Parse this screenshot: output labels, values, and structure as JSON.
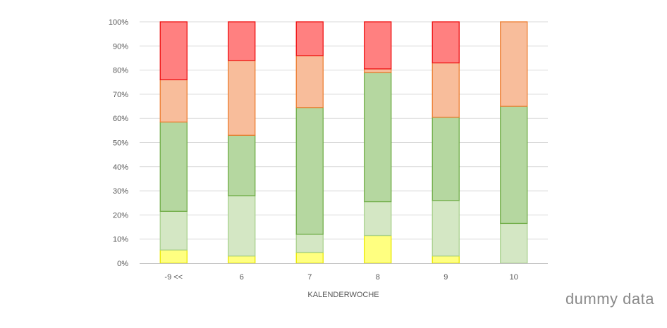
{
  "chart_data": {
    "type": "bar",
    "stacked": true,
    "percent_stacked": true,
    "categories": [
      "-9 <<",
      "6",
      "7",
      "8",
      "9",
      "10"
    ],
    "xlabel": "KALENDERWOCHE",
    "ylabel": "",
    "ylim": [
      0,
      100
    ],
    "y_ticks": [
      "0%",
      "10%",
      "20%",
      "30%",
      "40%",
      "50%",
      "60%",
      "70%",
      "80%",
      "90%",
      "100%"
    ],
    "grid": true,
    "legend": "none",
    "series": [
      {
        "values": [
          5.5,
          3,
          4.5,
          11.5,
          3,
          0
        ],
        "fill": "#ffff80",
        "stroke": "#e8e800"
      },
      {
        "values": [
          16,
          25,
          7.5,
          14,
          23,
          16.5
        ],
        "fill": "#d4e7c4",
        "stroke": "#a9d18e"
      },
      {
        "values": [
          37,
          25,
          52.5,
          53.5,
          34.5,
          48.5
        ],
        "fill": "#b5d7a0",
        "stroke": "#70ad47"
      },
      {
        "values": [
          17.5,
          31,
          21.5,
          1.5,
          22.5,
          35
        ],
        "fill": "#f8bd9b",
        "stroke": "#ed7d31"
      },
      {
        "values": [
          24,
          16,
          14,
          19.5,
          17,
          0
        ],
        "fill": "#ff8080",
        "stroke": "#ee1111"
      }
    ]
  },
  "watermark": "dummy data"
}
